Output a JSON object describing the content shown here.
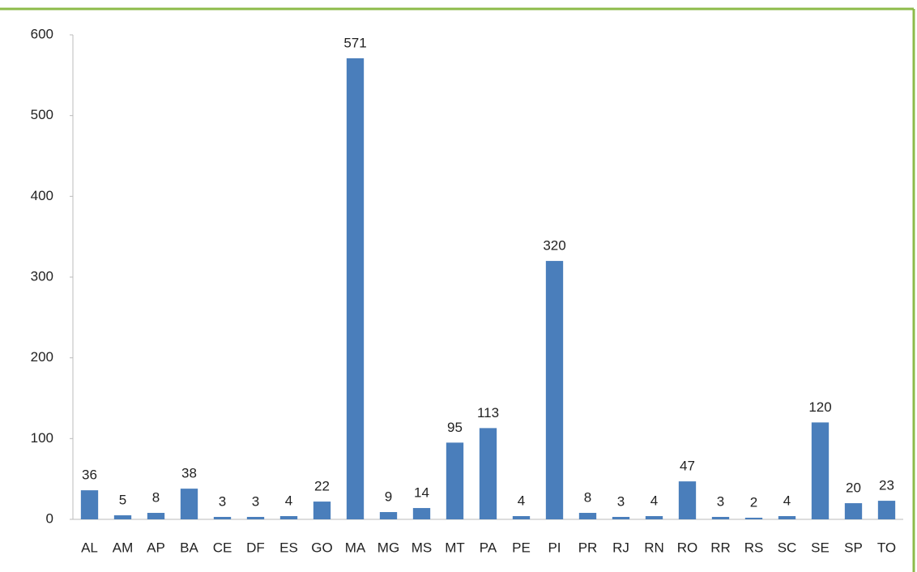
{
  "chart_data": {
    "type": "bar",
    "categories": [
      "AL",
      "AM",
      "AP",
      "BA",
      "CE",
      "DF",
      "ES",
      "GO",
      "MA",
      "MG",
      "MS",
      "MT",
      "PA",
      "PE",
      "PI",
      "PR",
      "RJ",
      "RN",
      "RO",
      "RR",
      "RS",
      "SC",
      "SE",
      "SP",
      "TO"
    ],
    "values": [
      36,
      5,
      8,
      38,
      3,
      3,
      4,
      22,
      571,
      9,
      14,
      95,
      113,
      4,
      320,
      8,
      3,
      4,
      47,
      3,
      2,
      4,
      120,
      20,
      23
    ],
    "color": "#4a7ebb",
    "ylim": [
      0,
      600
    ],
    "yticks": [
      0,
      100,
      200,
      300,
      400,
      500,
      600
    ],
    "grid": false
  }
}
